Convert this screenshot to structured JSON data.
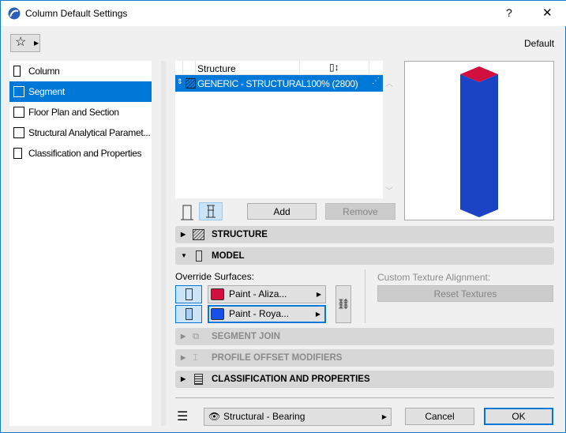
{
  "window": {
    "title": "Column Default Settings",
    "help": "?",
    "close": "✕"
  },
  "header": {
    "favorites_icon": "star-icon",
    "preset": "Default"
  },
  "sidebar": {
    "items": [
      {
        "label": "Column",
        "icon": "column-icon",
        "selected": false
      },
      {
        "label": "Segment",
        "icon": "segment-icon",
        "selected": true
      },
      {
        "label": "Floor Plan and Section",
        "icon": "floor-plan-icon",
        "selected": false
      },
      {
        "label": "Structural Analytical Paramet...",
        "icon": "structural-analytical-icon",
        "selected": false
      },
      {
        "label": "Classification and Properties",
        "icon": "classification-icon",
        "selected": false
      }
    ]
  },
  "structure_table": {
    "columns": [
      "Structure"
    ],
    "rows": [
      {
        "name": "GENERIC - STRUCTURAL",
        "height": "100% (2800)"
      }
    ]
  },
  "buttons": {
    "add": "Add",
    "remove": "Remove",
    "reset_textures": "Reset Textures",
    "cancel": "Cancel",
    "ok": "OK"
  },
  "sections": {
    "structure": "STRUCTURE",
    "model": "MODEL",
    "segment_join": "SEGMENT JOIN",
    "profile_offset": "PROFILE OFFSET MODIFIERS",
    "classification": "CLASSIFICATION AND PROPERTIES"
  },
  "model": {
    "override_label": "Override Surfaces:",
    "surface1": "Paint - Aliza...",
    "surface1_color": "#d1103f",
    "surface2": "Paint - Roya...",
    "surface2_color": "#1650e6",
    "custom_texture_label": "Custom Texture Alignment:"
  },
  "footer": {
    "layer": "Structural - Bearing"
  },
  "colors": {
    "accent": "#0078d7",
    "preview_top": "#d1103f",
    "preview_body": "#1a44c4"
  }
}
